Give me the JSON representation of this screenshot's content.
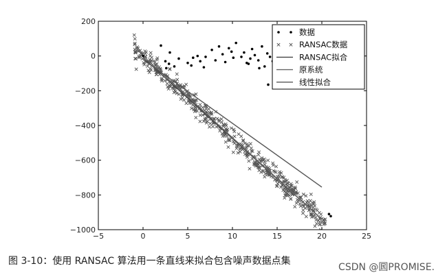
{
  "caption": "图 3-10：使用 RANSAC 算法用一条直线来拟合包含噪声数据点集",
  "watermark": "CSDN @囻PROMISE.",
  "chart_data": {
    "type": "scatter",
    "xlim": [
      -5,
      25
    ],
    "ylim": [
      -1000,
      200
    ],
    "xticks": [
      -5,
      0,
      5,
      10,
      15,
      20,
      25
    ],
    "yticks": [
      200,
      0,
      -200,
      -400,
      -600,
      -800,
      -1000
    ],
    "legend_position": "top-right",
    "grid": false,
    "legend": [
      "数据",
      "RANSAC数据",
      "RANSAC拟合",
      "原系统",
      "线性拟合"
    ],
    "series": [
      {
        "name": "数据",
        "marker": "dot",
        "color": "#000000",
        "points": [
          [
            0.0,
            0
          ],
          [
            2.5,
            -30
          ],
          [
            2.9,
            -45
          ],
          [
            3.5,
            -60
          ],
          [
            2.6,
            -70
          ],
          [
            4.0,
            -15
          ],
          [
            5.0,
            -40
          ],
          [
            5.4,
            -55
          ],
          [
            5.6,
            -10
          ],
          [
            6.1,
            0
          ],
          [
            6.4,
            -30
          ],
          [
            6.8,
            -65
          ],
          [
            7.0,
            -5
          ],
          [
            7.7,
            35
          ],
          [
            8.1,
            -25
          ],
          [
            8.5,
            55
          ],
          [
            8.9,
            10
          ],
          [
            9.2,
            -35
          ],
          [
            9.6,
            45
          ],
          [
            9.9,
            25
          ],
          [
            10.1,
            -10
          ],
          [
            10.4,
            75
          ],
          [
            11.0,
            -5
          ],
          [
            11.3,
            20
          ],
          [
            11.8,
            -45
          ],
          [
            12.2,
            40
          ],
          [
            12.5,
            5
          ],
          [
            12.9,
            -25
          ],
          [
            13.3,
            55
          ],
          [
            13.6,
            -60
          ],
          [
            13.9,
            15
          ],
          [
            14.2,
            -5
          ],
          [
            14.5,
            -30
          ],
          [
            14.8,
            45
          ],
          [
            15.2,
            -10
          ],
          [
            15.6,
            -70
          ],
          [
            13.0,
            -70
          ],
          [
            11.6,
            -40
          ],
          [
            12.0,
            -15
          ],
          [
            14.0,
            -165
          ],
          [
            2.0,
            60
          ],
          [
            3.0,
            20
          ],
          [
            20.8,
            -910
          ],
          [
            21.0,
            -922
          ]
        ]
      },
      {
        "name": "RANSAC数据",
        "marker": "x",
        "color": "#555555",
        "count": 520,
        "slope": -46.6,
        "intercept": -7,
        "x_range": [
          -1,
          20.4
        ],
        "noise_sd": 30
      },
      {
        "name": "RANSAC拟合",
        "line": [
          [
            0,
            -10
          ],
          [
            20,
            -940
          ]
        ],
        "color": "#444444"
      },
      {
        "name": "原系统",
        "line": [
          [
            0,
            0
          ],
          [
            20,
            -940
          ]
        ],
        "color": "#666666"
      },
      {
        "name": "线性拟合",
        "line": [
          [
            0,
            -20
          ],
          [
            20,
            -755
          ]
        ],
        "color": "#555555"
      }
    ]
  }
}
